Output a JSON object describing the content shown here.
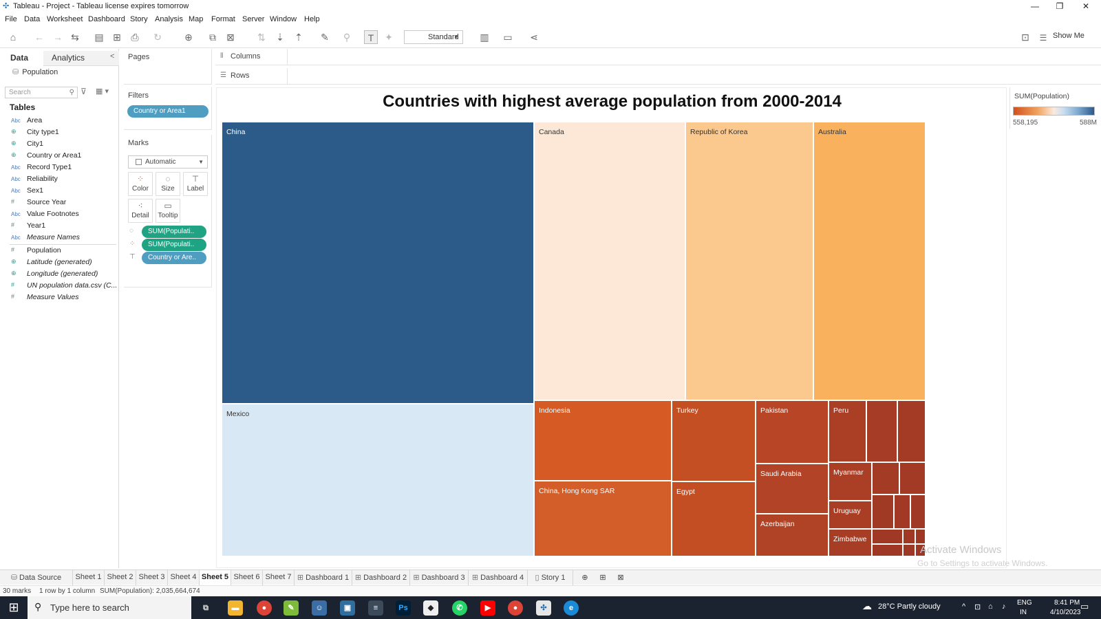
{
  "window": {
    "title": "Tableau - Project - Tableau license expires tomorrow"
  },
  "menu": [
    "File",
    "Data",
    "Worksheet",
    "Dashboard",
    "Story",
    "Analysis",
    "Map",
    "Format",
    "Server",
    "Window",
    "Help"
  ],
  "toolbar": {
    "fit_dropdown": "Standard",
    "show_me": "Show Me"
  },
  "data_pane": {
    "tab_data": "Data",
    "tab_analytics": "Analytics",
    "datasource": "Population",
    "search_placeholder": "Search",
    "tables_heading": "Tables",
    "fields": [
      {
        "name": "Area",
        "icon": "abc-icon",
        "italic": false
      },
      {
        "name": "City type1",
        "icon": "globe-icon",
        "italic": false
      },
      {
        "name": "City1",
        "icon": "globe-icon",
        "italic": false
      },
      {
        "name": "Country or Area1",
        "icon": "globe-icon",
        "italic": false
      },
      {
        "name": "Record Type1",
        "icon": "abc-icon",
        "italic": false
      },
      {
        "name": "Reliability",
        "icon": "abc-icon",
        "italic": false
      },
      {
        "name": "Sex1",
        "icon": "abc-icon",
        "italic": false
      },
      {
        "name": "Source Year",
        "icon": "hash-icon",
        "italic": false
      },
      {
        "name": "Value Footnotes",
        "icon": "abc-icon",
        "italic": false
      },
      {
        "name": "Year1",
        "icon": "hash-icon",
        "italic": false
      },
      {
        "name": "Measure Names",
        "icon": "abc-icon",
        "italic": true
      },
      {
        "name": "Population",
        "icon": "hash-icon",
        "italic": false
      },
      {
        "name": "Latitude (generated)",
        "icon": "globe-icon",
        "italic": true
      },
      {
        "name": "Longitude (generated)",
        "icon": "globe-icon",
        "italic": true
      },
      {
        "name": "UN population data.csv (C...",
        "icon": "hash-icon",
        "italic": true
      },
      {
        "name": "Measure Values",
        "icon": "hash-icon",
        "italic": true
      }
    ]
  },
  "cards": {
    "pages": "Pages",
    "filters": "Filters",
    "filter_pill": "Country or Area1",
    "marks": "Marks",
    "marks_type": "Automatic",
    "mark_buttons": [
      "Color",
      "Size",
      "Label",
      "Detail",
      "Tooltip"
    ],
    "mark_pills": [
      "SUM(Populati..",
      "SUM(Populati..",
      "Country or Are.."
    ]
  },
  "shelves": {
    "columns": "Columns",
    "rows": "Rows"
  },
  "view": {
    "title": "Countries with highest average population from 2000-2014"
  },
  "treemap_cells": [
    {
      "label": "China",
      "color": "#2c5b89",
      "text_color": "#ffffff"
    },
    {
      "label": "Mexico",
      "color": "#d9e8f5",
      "text_color": "#333333"
    },
    {
      "label": "Canada",
      "color": "#fde8d7",
      "text_color": "#333333"
    },
    {
      "label": "Republic of Korea",
      "color": "#fbc98e",
      "text_color": "#333333"
    },
    {
      "label": "Australia",
      "color": "#f9b15e",
      "text_color": "#333333"
    },
    {
      "label": "Indonesia",
      "color": "#d55a24",
      "text_color": "#ffffff"
    },
    {
      "label": "China, Hong Kong SAR",
      "color": "#d35e2a",
      "text_color": "#ffffff"
    },
    {
      "label": "Turkey",
      "color": "#c34f23",
      "text_color": "#ffffff"
    },
    {
      "label": "Egypt",
      "color": "#c34e24",
      "text_color": "#ffffff"
    },
    {
      "label": "Pakistan",
      "color": "#b84525",
      "text_color": "#ffffff"
    },
    {
      "label": "Saudi Arabia",
      "color": "#b24326",
      "text_color": "#ffffff"
    },
    {
      "label": "Azerbaijan",
      "color": "#b04226",
      "text_color": "#ffffff"
    },
    {
      "label": "Peru",
      "color": "#ab3f25",
      "text_color": "#ffffff"
    },
    {
      "label": "Myanmar",
      "color": "#ab3f25",
      "text_color": "#ffffff"
    },
    {
      "label": "Uruguay",
      "color": "#a93e25",
      "text_color": "#ffffff"
    },
    {
      "label": "Zimbabwe",
      "color": "#a83d25",
      "text_color": "#ffffff"
    }
  ],
  "legend": {
    "title": "SUM(Population)",
    "min": "558,195",
    "max": "588M"
  },
  "watermark": {
    "line1": "Activate Windows",
    "line2": "Go to Settings to activate Windows."
  },
  "sheet_tabs": [
    {
      "label": "Data Source",
      "icon": "database-icon",
      "active": false
    },
    {
      "label": "Sheet 1",
      "icon": "",
      "active": false
    },
    {
      "label": "Sheet 2",
      "icon": "",
      "active": false
    },
    {
      "label": "Sheet 3",
      "icon": "",
      "active": false
    },
    {
      "label": "Sheet 4",
      "icon": "",
      "active": false
    },
    {
      "label": "Sheet 5",
      "icon": "",
      "active": true
    },
    {
      "label": "Sheet 6",
      "icon": "",
      "active": false
    },
    {
      "label": "Sheet 7",
      "icon": "",
      "active": false
    },
    {
      "label": "Dashboard 1",
      "icon": "dashboard-icon",
      "active": false
    },
    {
      "label": "Dashboard 2",
      "icon": "dashboard-icon",
      "active": false
    },
    {
      "label": "Dashboard 3",
      "icon": "dashboard-icon",
      "active": false
    },
    {
      "label": "Dashboard 4",
      "icon": "dashboard-icon",
      "active": false
    },
    {
      "label": "Story 1",
      "icon": "story-icon",
      "active": false
    }
  ],
  "status": {
    "marks": "30 marks",
    "dims": "1 row by 1 column",
    "sum": "SUM(Population): 2,035,664,674"
  },
  "taskbar": {
    "search_placeholder": "Type here to search",
    "weather": "28°C  Partly cloudy",
    "lang1": "ENG",
    "lang2": "IN",
    "time": "8:41 PM",
    "date": "4/10/2023"
  }
}
